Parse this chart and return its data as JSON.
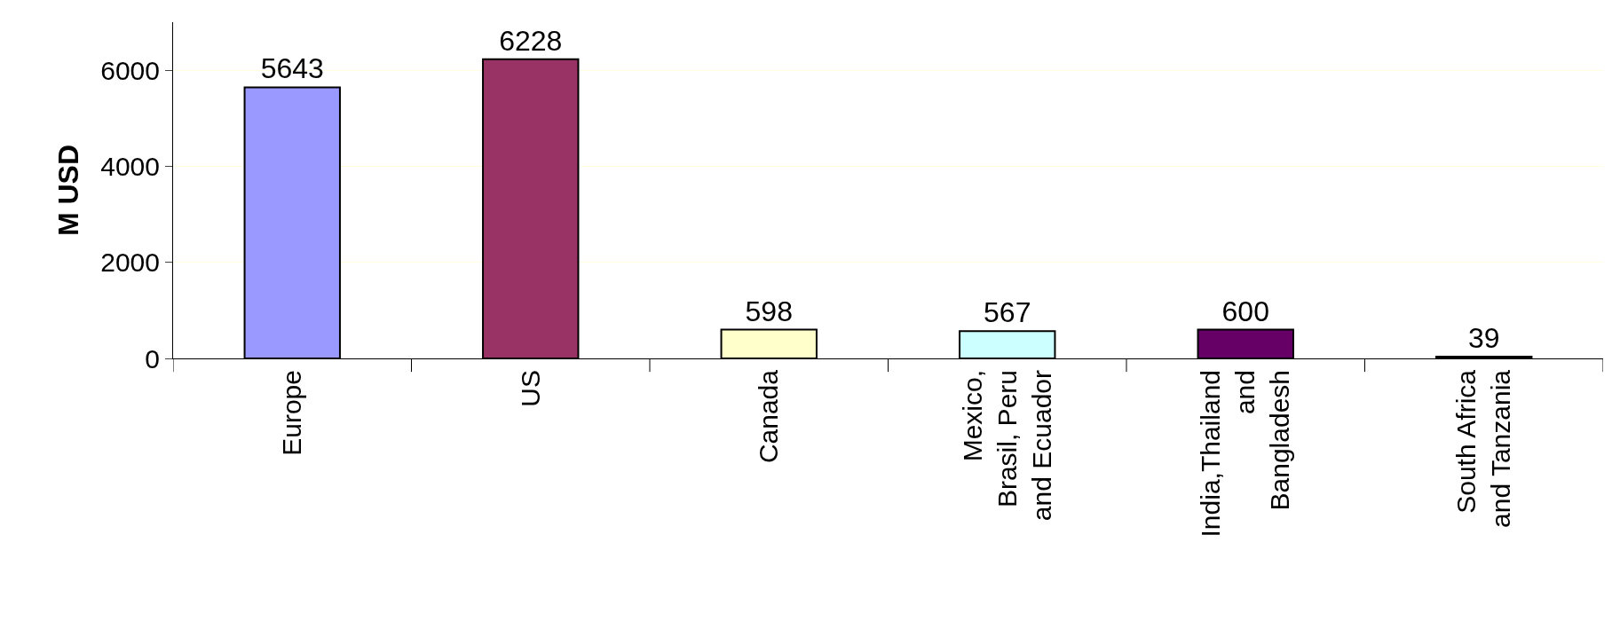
{
  "chart_data": {
    "type": "bar",
    "ylabel": "M USD",
    "categories": [
      "Europe",
      "US",
      "Canada",
      "Mexico,\nBrasil, Peru\nand Ecuador",
      "India,Thailand\nand\nBangladesh",
      "South Africa\nand Tanzania"
    ],
    "values": [
      5643,
      6228,
      598,
      567,
      600,
      39
    ],
    "colors": [
      "#9999ff",
      "#993366",
      "#ffffcc",
      "#ccffff",
      "#660066",
      "#000000"
    ],
    "ylim": [
      0,
      7000
    ],
    "yticks": [
      0,
      2000,
      4000,
      6000
    ],
    "grid": "y",
    "data_labels": true
  }
}
